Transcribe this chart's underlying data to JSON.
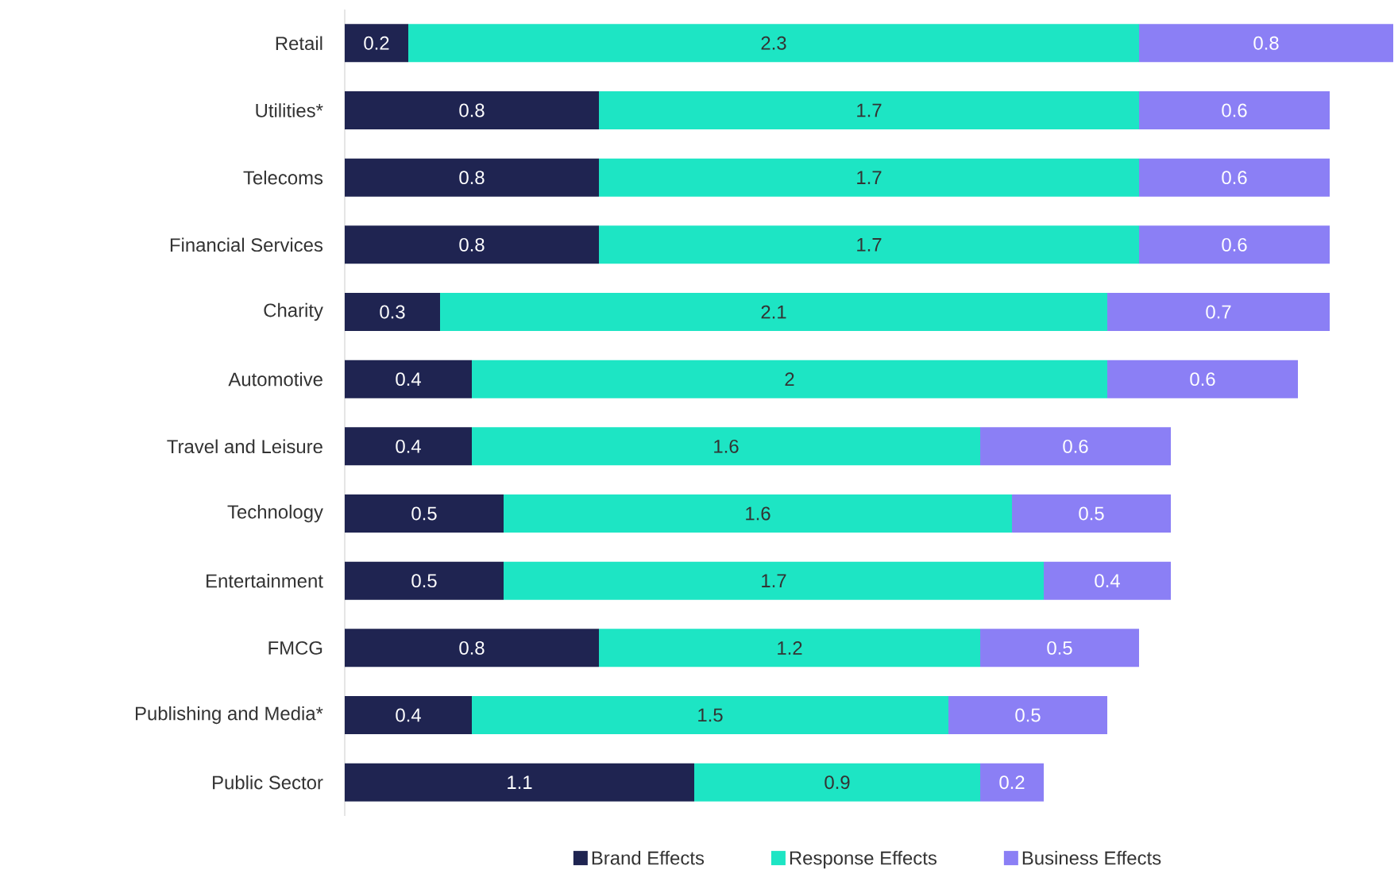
{
  "chart_data": {
    "type": "bar",
    "orientation": "horizontal",
    "stacked": true,
    "data_labels": true,
    "legend": "bottom",
    "tick_labels": "y",
    "categories": [
      "Retail",
      "Utilities*",
      "Telecoms",
      "Financial Services",
      "Charity",
      "Automotive",
      "Travel and Leisure",
      "Technology",
      "Entertainment",
      "FMCG",
      "Publishing and Media*",
      "Public Sector"
    ],
    "series": [
      {
        "name": "Brand Effects",
        "color": "#1f2451",
        "values": [
          0.2,
          0.8,
          0.8,
          0.8,
          0.3,
          0.4,
          0.4,
          0.5,
          0.5,
          0.8,
          0.4,
          1.1
        ]
      },
      {
        "name": "Response Effects",
        "color": "#1de5c4",
        "values": [
          2.3,
          1.7,
          1.7,
          1.7,
          2.1,
          2,
          1.6,
          1.6,
          1.7,
          1.2,
          1.5,
          0.9
        ]
      },
      {
        "name": "Business Effects",
        "color": "#8b7ff5",
        "values": [
          0.8,
          0.6,
          0.6,
          0.6,
          0.7,
          0.6,
          0.6,
          0.5,
          0.4,
          0.5,
          0.5,
          0.2
        ]
      }
    ]
  }
}
